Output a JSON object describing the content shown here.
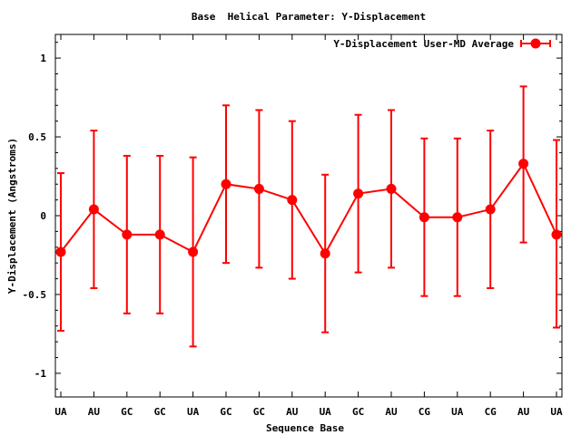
{
  "chart_data": {
    "type": "line",
    "title": "Base  Helical Parameter: Y-Displacement",
    "xlabel": "Sequence Base",
    "ylabel": "Y-Displacement (Angstroms)",
    "categories": [
      "UA",
      "AU",
      "GC",
      "GC",
      "UA",
      "GC",
      "GC",
      "AU",
      "UA",
      "GC",
      "AU",
      "CG",
      "UA",
      "CG",
      "AU",
      "UA"
    ],
    "series": [
      {
        "name": "Y-Displacement User-MD Average",
        "color": "#ff0000",
        "values": [
          -0.23,
          0.04,
          -0.12,
          -0.12,
          -0.23,
          0.2,
          0.17,
          0.1,
          -0.24,
          0.14,
          0.17,
          -0.01,
          -0.01,
          0.04,
          0.33,
          -0.12
        ],
        "error_low": [
          -0.73,
          -0.46,
          -0.62,
          -0.62,
          -0.83,
          -0.3,
          -0.33,
          -0.4,
          -0.74,
          -0.36,
          -0.33,
          -0.51,
          -0.51,
          -0.46,
          -0.17,
          -0.71
        ],
        "error_high": [
          0.27,
          0.54,
          0.38,
          0.38,
          0.37,
          0.7,
          0.67,
          0.6,
          0.26,
          0.64,
          0.67,
          0.49,
          0.49,
          0.54,
          0.82,
          0.48
        ]
      }
    ],
    "ylim": [
      -1.15,
      1.15
    ],
    "yticks": [
      -1,
      -0.5,
      0,
      0.5,
      1
    ],
    "ytick_labels": [
      "-1",
      "-0.5",
      "0",
      "0.5",
      "1"
    ],
    "grid": false,
    "legend_position": "top-right"
  }
}
